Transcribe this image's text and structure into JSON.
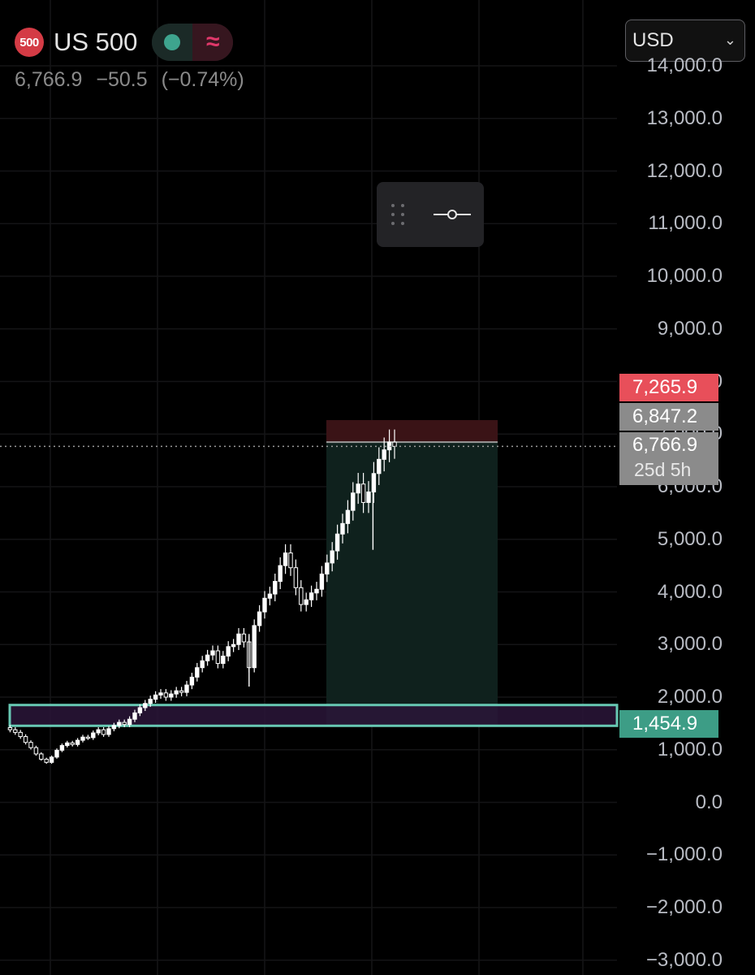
{
  "header": {
    "symbol_badge": "500",
    "symbol_name": "US 500",
    "market_status": "open",
    "last_price": "6,766.9",
    "change": "−50.5",
    "change_percent": "(−0.74%)",
    "currency": "USD"
  },
  "colors": {
    "background": "#000000",
    "candle": "#ffffff",
    "stop_label": "#e84f5a",
    "target_label": "#3d9d86",
    "profit_zone": "#0f211d",
    "loss_zone": "#3a1316",
    "support_box_border": "#67c8b3",
    "support_box_fill": "#2a1538"
  },
  "chart_data": {
    "type": "candlestick",
    "symbol": "US 500",
    "y_axis": {
      "ticks": [
        "14,000.0",
        "13,000.0",
        "12,000.0",
        "11,000.0",
        "10,000.0",
        "9,000.0",
        "8,000.0",
        "7,000.0",
        "6,000.0",
        "5,000.0",
        "4,000.0",
        "3,000.0",
        "2,000.0",
        "1,000.0",
        "0.0",
        "−1,000.0",
        "−2,000.0",
        "−3,000.0"
      ],
      "range": [
        -3200,
        14200
      ]
    },
    "price_series": [
      [
        0,
        1420
      ],
      [
        1,
        1380
      ],
      [
        2,
        1330
      ],
      [
        3,
        1250
      ],
      [
        4,
        1140
      ],
      [
        5,
        1040
      ],
      [
        6,
        920
      ],
      [
        7,
        820
      ],
      [
        8,
        760
      ],
      [
        9,
        860
      ],
      [
        10,
        990
      ],
      [
        11,
        1080
      ],
      [
        12,
        1130
      ],
      [
        13,
        1100
      ],
      [
        14,
        1180
      ],
      [
        15,
        1240
      ],
      [
        16,
        1230
      ],
      [
        17,
        1320
      ],
      [
        18,
        1380
      ],
      [
        19,
        1290
      ],
      [
        20,
        1400
      ],
      [
        21,
        1460
      ],
      [
        22,
        1520
      ],
      [
        23,
        1480
      ],
      [
        24,
        1580
      ],
      [
        25,
        1700
      ],
      [
        26,
        1800
      ],
      [
        27,
        1880
      ],
      [
        28,
        1960
      ],
      [
        29,
        2040
      ],
      [
        30,
        2080
      ],
      [
        31,
        2000
      ],
      [
        32,
        2060
      ],
      [
        33,
        2120
      ],
      [
        34,
        2090
      ],
      [
        35,
        2230
      ],
      [
        36,
        2380
      ],
      [
        37,
        2560
      ],
      [
        38,
        2690
      ],
      [
        39,
        2800
      ],
      [
        40,
        2880
      ],
      [
        41,
        2640
      ],
      [
        42,
        2780
      ],
      [
        43,
        2960
      ],
      [
        44,
        3000
      ],
      [
        45,
        3200
      ],
      [
        46,
        3050
      ],
      [
        47,
        2560
      ],
      [
        48,
        3360
      ],
      [
        49,
        3620
      ],
      [
        50,
        3880
      ],
      [
        51,
        3960
      ],
      [
        52,
        4200
      ],
      [
        53,
        4500
      ],
      [
        54,
        4740
      ],
      [
        55,
        4460
      ],
      [
        56,
        4080
      ],
      [
        57,
        3760
      ],
      [
        58,
        3850
      ],
      [
        59,
        3980
      ],
      [
        60,
        4050
      ],
      [
        61,
        4340
      ],
      [
        62,
        4550
      ],
      [
        63,
        4780
      ],
      [
        64,
        5100
      ],
      [
        65,
        5300
      ],
      [
        66,
        5550
      ],
      [
        67,
        5880
      ],
      [
        68,
        6050
      ],
      [
        69,
        5700
      ],
      [
        70,
        5900
      ],
      [
        71,
        6250
      ],
      [
        72,
        6520
      ],
      [
        73,
        6700
      ],
      [
        74,
        6847
      ],
      [
        75,
        6766.9
      ]
    ],
    "time_range": "multi-decade history, x axis unlabeled",
    "current_price": 6766.9,
    "last_close_line": 6766.9,
    "price_labels": [
      {
        "name": "stop-level",
        "value": "7,265.9",
        "price": 7265.9
      },
      {
        "name": "entry-level",
        "value": "6,847.2",
        "price": 6847.2
      },
      {
        "name": "current-price",
        "value": "6,766.9",
        "price": 6766.9
      },
      {
        "name": "countdown",
        "value": "25d 5h",
        "price": 6766.9
      },
      {
        "name": "target-level",
        "value": "1,454.9",
        "price": 1454.9
      }
    ],
    "short_position": {
      "entry": 6847.2,
      "stop": 7265.9,
      "target": 1454.9
    },
    "support_zone": {
      "low": 1454.9,
      "high": 1850
    },
    "grid": true
  }
}
